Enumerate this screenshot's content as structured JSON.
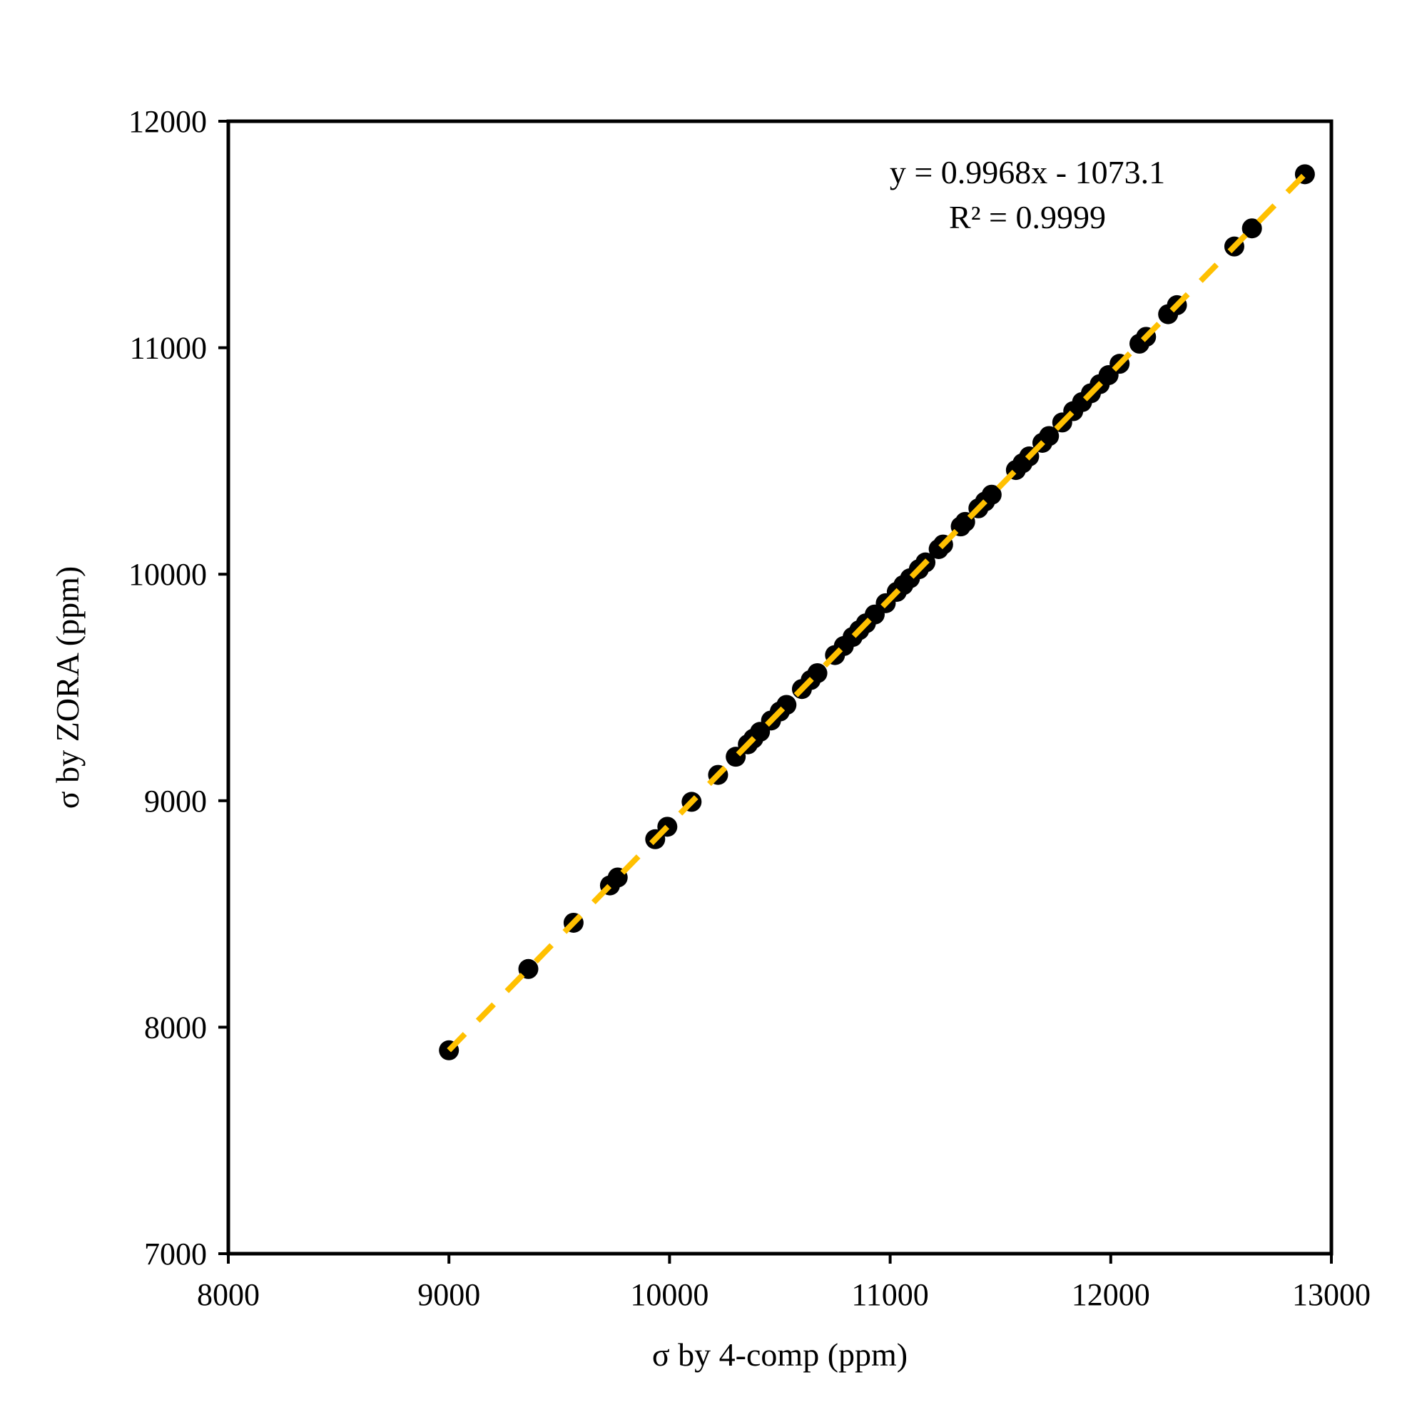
{
  "chart_data": {
    "type": "scatter",
    "xlabel": "σ by 4-comp (ppm)",
    "ylabel": "σ by ZORA (ppm)",
    "xlim": [
      8000,
      13000
    ],
    "ylim": [
      7000,
      12000
    ],
    "x_ticks": [
      "8000",
      "9000",
      "10000",
      "11000",
      "12000",
      "13000"
    ],
    "y_ticks": [
      "7000",
      "8000",
      "9000",
      "10000",
      "11000",
      "12000"
    ],
    "grid": false,
    "legend": "none",
    "annotations": [
      "y = 0.9968x - 1073.1",
      "R² = 0.9999"
    ],
    "colors": {
      "points": "#000000",
      "trendline": "#FFC000",
      "axes": "#000000"
    },
    "trendline": {
      "slope": 0.9968,
      "intercept": -1073.1,
      "style": "dashed",
      "x_range": [
        9000,
        12880
      ]
    },
    "series": [
      {
        "points": [
          [
            9000,
            7898
          ],
          [
            9360,
            8257
          ],
          [
            9565,
            8461
          ],
          [
            9730,
            8626
          ],
          [
            9765,
            8661
          ],
          [
            9935,
            8830
          ],
          [
            9990,
            8885
          ],
          [
            10100,
            8995
          ],
          [
            10220,
            9114
          ],
          [
            10300,
            9194
          ],
          [
            10355,
            9249
          ],
          [
            10380,
            9274
          ],
          [
            10410,
            9304
          ],
          [
            10460,
            9354
          ],
          [
            10500,
            9394
          ],
          [
            10530,
            9423
          ],
          [
            10600,
            9493
          ],
          [
            10640,
            9533
          ],
          [
            10670,
            9563
          ],
          [
            10750,
            9643
          ],
          [
            10790,
            9683
          ],
          [
            10830,
            9723
          ],
          [
            10860,
            9753
          ],
          [
            10890,
            9783
          ],
          [
            10930,
            9822
          ],
          [
            10980,
            9872
          ],
          [
            11030,
            9922
          ],
          [
            11060,
            9952
          ],
          [
            11090,
            9982
          ],
          [
            11130,
            10022
          ],
          [
            11160,
            10052
          ],
          [
            11220,
            10111
          ],
          [
            11240,
            10131
          ],
          [
            11320,
            10211
          ],
          [
            11340,
            10231
          ],
          [
            11400,
            10291
          ],
          [
            11430,
            10321
          ],
          [
            11460,
            10351
          ],
          [
            11570,
            10460
          ],
          [
            11600,
            10490
          ],
          [
            11630,
            10520
          ],
          [
            11690,
            10580
          ],
          [
            11720,
            10610
          ],
          [
            11780,
            10670
          ],
          [
            11830,
            10720
          ],
          [
            11870,
            10760
          ],
          [
            11910,
            10799
          ],
          [
            11950,
            10839
          ],
          [
            11990,
            10879
          ],
          [
            12040,
            10929
          ],
          [
            12130,
            11018
          ],
          [
            12160,
            11048
          ],
          [
            12260,
            11148
          ],
          [
            12300,
            11188
          ],
          [
            12560,
            11447
          ],
          [
            12640,
            11527
          ],
          [
            12880,
            11766
          ]
        ]
      }
    ]
  }
}
